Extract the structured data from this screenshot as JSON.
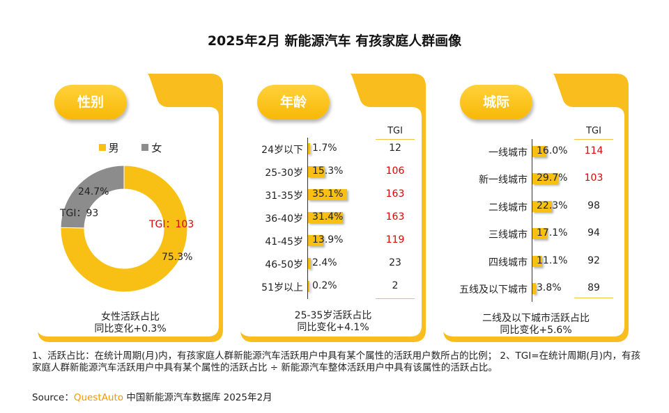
{
  "title": "2025年2月 新能源汽车 有孩家庭人群画像",
  "colors": {
    "accent": "#f8c015",
    "gray": "#8c8c8c",
    "red": "#e00000"
  },
  "chart_data": [
    {
      "type": "pie",
      "title": "性别",
      "categories": [
        "男",
        "女"
      ],
      "values": [
        75.3,
        24.7
      ],
      "value_labels": [
        "75.3%",
        "24.7%"
      ],
      "tgi": [
        "TGI：103",
        "TGI：93"
      ],
      "colors": [
        "#f8c015",
        "#8c8c8c"
      ],
      "footer": [
        "女性活跃占比",
        "同比变化+0.3%"
      ]
    },
    {
      "type": "bar",
      "title": "年龄",
      "categories": [
        "24岁以下",
        "25-30岁",
        "31-35岁",
        "36-40岁",
        "41-45岁",
        "46-50岁",
        "51岁以上"
      ],
      "values": [
        1.7,
        15.3,
        35.1,
        31.4,
        13.9,
        2.4,
        0.2
      ],
      "value_labels": [
        "1.7%",
        "15.3%",
        "35.1%",
        "31.4%",
        "13.9%",
        "2.4%",
        "0.2%"
      ],
      "tgi_header": "TGI",
      "tgi": [
        "12",
        "106",
        "163",
        "163",
        "119",
        "23",
        "2"
      ],
      "tgi_values": [
        12,
        106,
        163,
        163,
        119,
        23,
        2
      ],
      "footer": [
        "25-35岁活跃占比",
        "同比变化+4.1%"
      ]
    },
    {
      "type": "bar",
      "title": "城际",
      "categories": [
        "一线城市",
        "新一线城市",
        "二线城市",
        "三线城市",
        "四线城市",
        "五线及以下城市"
      ],
      "values": [
        16.0,
        29.7,
        22.3,
        17.1,
        11.1,
        3.8
      ],
      "value_labels": [
        "16.0%",
        "29.7%",
        "22.3%",
        "17.1%",
        "11.1%",
        "3.8%"
      ],
      "tgi_header": "TGI",
      "tgi": [
        "114",
        "103",
        "98",
        "94",
        "92",
        "89"
      ],
      "tgi_values": [
        114,
        103,
        98,
        94,
        92,
        89
      ],
      "footer": [
        "二线及以下城市活跃占比",
        "同比变化+5.6%"
      ]
    }
  ],
  "note": "1、活跃占比：在统计周期(月)内，有孩家庭人群新能源汽车活跃用户中具有某个属性的活跃用户数所占的比例； 2、TGI=在统计周期(月)内，有孩家庭人群新能源汽车活跃用户中具有某个属性的活跃占比 ÷ 新能源汽车整体活跃用户中具有该属性的活跃占比。",
  "source": {
    "prefix": "Source：",
    "brand": "QuestAuto",
    "rest": " 中国新能源汽车数据库 2025年2月"
  }
}
